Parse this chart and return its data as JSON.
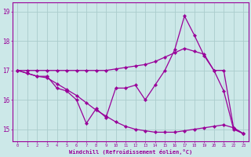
{
  "xlabel": "Windchill (Refroidissement éolien,°C)",
  "hours": [
    0,
    1,
    2,
    3,
    4,
    5,
    6,
    7,
    8,
    9,
    10,
    11,
    12,
    13,
    14,
    15,
    16,
    17,
    18,
    19,
    20,
    21,
    22,
    23
  ],
  "main_line": [
    17.0,
    16.9,
    16.8,
    16.8,
    16.4,
    16.3,
    16.0,
    15.2,
    15.7,
    15.4,
    16.4,
    16.4,
    16.5,
    16.0,
    16.5,
    17.0,
    17.7,
    18.85,
    18.2,
    17.5,
    17.0,
    16.3,
    15.0,
    14.85
  ],
  "upper_line": [
    17.0,
    17.0,
    17.0,
    17.0,
    17.0,
    17.0,
    17.0,
    17.0,
    17.0,
    17.0,
    17.05,
    17.1,
    17.15,
    17.2,
    17.3,
    17.45,
    17.6,
    17.75,
    17.65,
    17.55,
    17.0,
    17.0,
    15.05,
    14.85
  ],
  "lower_line": [
    17.0,
    16.9,
    16.8,
    16.75,
    16.55,
    16.35,
    16.15,
    15.9,
    15.65,
    15.45,
    15.25,
    15.1,
    15.0,
    14.95,
    14.9,
    14.9,
    14.9,
    14.95,
    15.0,
    15.05,
    15.1,
    15.15,
    15.05,
    14.85
  ],
  "line_color": "#990099",
  "bg_color": "#cce8e8",
  "grid_color": "#aacccc",
  "ylim": [
    14.6,
    19.3
  ],
  "yticks": [
    15,
    16,
    17,
    18,
    19
  ],
  "xlim": [
    -0.5,
    23.5
  ]
}
